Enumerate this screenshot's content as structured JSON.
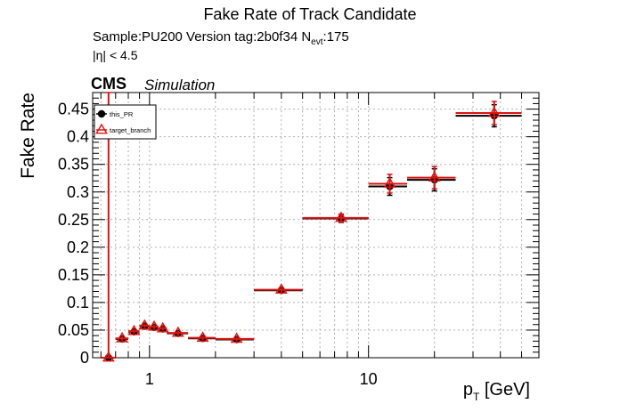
{
  "header": {
    "title": "Fake Rate of Track Candidate",
    "sample_text": "Sample:PU200   Version tag:2b0f34  N",
    "nevt_sub": "evt",
    "nevt_value": ":175",
    "eta_cut": "|η| < 4.5",
    "cms_label": "CMS",
    "sim_label": "Simulation"
  },
  "colors": {
    "this_pr": "#000000",
    "target_branch": "#e0130f",
    "grid": "#b0b0b0"
  },
  "chart_data": {
    "type": "scatter",
    "title": "Fake Rate of Track Candidate",
    "xlabel": "p",
    "xlabel_sub": "T",
    "xlabel_unit": " [GeV]",
    "ylabel": "Fake Rate",
    "xscale": "log",
    "xlim": [
      0.55,
      60
    ],
    "ylim": [
      0,
      0.48
    ],
    "grid": true,
    "legend_position": "top-left",
    "x_ticks": [
      {
        "value": 1,
        "label": "1"
      },
      {
        "value": 10,
        "label": "10"
      }
    ],
    "y_ticks": [
      {
        "value": 0,
        "label": "0"
      },
      {
        "value": 0.05,
        "label": "0.05"
      },
      {
        "value": 0.1,
        "label": "0.1"
      },
      {
        "value": 0.15,
        "label": "0.15"
      },
      {
        "value": 0.2,
        "label": "0.2"
      },
      {
        "value": 0.25,
        "label": "0.25"
      },
      {
        "value": 0.3,
        "label": "0.3"
      },
      {
        "value": 0.35,
        "label": "0.35"
      },
      {
        "value": 0.4,
        "label": "0.4"
      },
      {
        "value": 0.45,
        "label": "0.45"
      }
    ],
    "series": [
      {
        "name": "this_PR",
        "marker": "circle",
        "color": "#000000",
        "points": [
          {
            "x": 0.65,
            "x_lo": 0.6,
            "x_hi": 0.7,
            "y": 0.0,
            "err": 0.003
          },
          {
            "x": 0.75,
            "x_lo": 0.7,
            "x_hi": 0.8,
            "y": 0.034,
            "err": 0.004
          },
          {
            "x": 0.85,
            "x_lo": 0.8,
            "x_hi": 0.9,
            "y": 0.047,
            "err": 0.004
          },
          {
            "x": 0.95,
            "x_lo": 0.9,
            "x_hi": 1.0,
            "y": 0.057,
            "err": 0.004
          },
          {
            "x": 1.05,
            "x_lo": 1.0,
            "x_hi": 1.1,
            "y": 0.055,
            "err": 0.004
          },
          {
            "x": 1.15,
            "x_lo": 1.1,
            "x_hi": 1.2,
            "y": 0.052,
            "err": 0.004
          },
          {
            "x": 1.35,
            "x_lo": 1.2,
            "x_hi": 1.5,
            "y": 0.044,
            "err": 0.004
          },
          {
            "x": 1.75,
            "x_lo": 1.5,
            "x_hi": 2.0,
            "y": 0.035,
            "err": 0.004
          },
          {
            "x": 2.5,
            "x_lo": 2.0,
            "x_hi": 3.0,
            "y": 0.033,
            "err": 0.004
          },
          {
            "x": 4.0,
            "x_lo": 3.0,
            "x_hi": 5.0,
            "y": 0.122,
            "err": 0.005
          },
          {
            "x": 7.5,
            "x_lo": 5.0,
            "x_hi": 10.0,
            "y": 0.252,
            "err": 0.007
          },
          {
            "x": 12.5,
            "x_lo": 10.0,
            "x_hi": 15.0,
            "y": 0.31,
            "err": 0.016
          },
          {
            "x": 20.0,
            "x_lo": 15.0,
            "x_hi": 25.0,
            "y": 0.322,
            "err": 0.02
          },
          {
            "x": 37.5,
            "x_lo": 25.0,
            "x_hi": 50.0,
            "y": 0.438,
            "err": 0.02
          }
        ]
      },
      {
        "name": "target_branch",
        "marker": "triangle-open",
        "color": "#e0130f",
        "points": [
          {
            "x": 0.65,
            "x_lo": 0.6,
            "x_hi": 0.7,
            "y": 0.0,
            "err": 0.48
          },
          {
            "x": 0.75,
            "x_lo": 0.7,
            "x_hi": 0.8,
            "y": 0.035,
            "err": 0.004
          },
          {
            "x": 0.85,
            "x_lo": 0.8,
            "x_hi": 0.9,
            "y": 0.048,
            "err": 0.004
          },
          {
            "x": 0.95,
            "x_lo": 0.9,
            "x_hi": 1.0,
            "y": 0.058,
            "err": 0.004
          },
          {
            "x": 1.05,
            "x_lo": 1.0,
            "x_hi": 1.1,
            "y": 0.056,
            "err": 0.004
          },
          {
            "x": 1.15,
            "x_lo": 1.1,
            "x_hi": 1.2,
            "y": 0.053,
            "err": 0.004
          },
          {
            "x": 1.35,
            "x_lo": 1.2,
            "x_hi": 1.5,
            "y": 0.045,
            "err": 0.004
          },
          {
            "x": 1.75,
            "x_lo": 1.5,
            "x_hi": 2.0,
            "y": 0.036,
            "err": 0.004
          },
          {
            "x": 2.5,
            "x_lo": 2.0,
            "x_hi": 3.0,
            "y": 0.034,
            "err": 0.004
          },
          {
            "x": 4.0,
            "x_lo": 3.0,
            "x_hi": 5.0,
            "y": 0.123,
            "err": 0.005
          },
          {
            "x": 7.5,
            "x_lo": 5.0,
            "x_hi": 10.0,
            "y": 0.253,
            "err": 0.007
          },
          {
            "x": 12.5,
            "x_lo": 10.0,
            "x_hi": 15.0,
            "y": 0.315,
            "err": 0.017
          },
          {
            "x": 20.0,
            "x_lo": 15.0,
            "x_hi": 25.0,
            "y": 0.326,
            "err": 0.02
          },
          {
            "x": 37.5,
            "x_lo": 25.0,
            "x_hi": 50.0,
            "y": 0.443,
            "err": 0.021
          }
        ]
      }
    ]
  }
}
